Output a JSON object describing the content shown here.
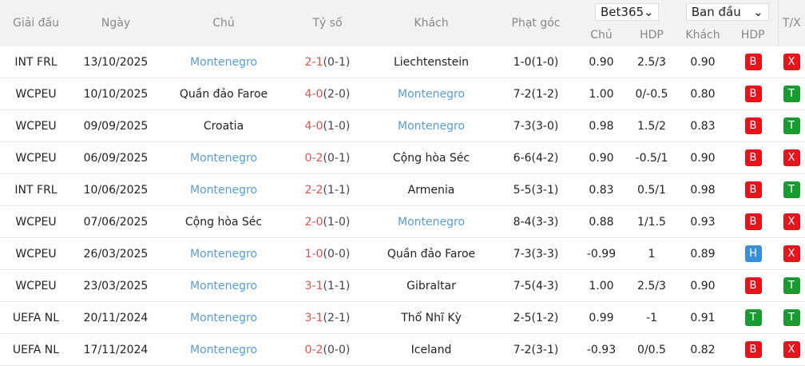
{
  "header": {
    "league": "Giải đấu",
    "date": "Ngày",
    "home": "Chủ",
    "score": "Tỷ số",
    "away": "Khách",
    "corners": "Phạt góc",
    "bookmaker": "Bet365",
    "odds_type": "Ban đầu",
    "odds_home": "Chủ",
    "odds_hdp": "HDP",
    "odds_away": "Khách",
    "result_hdp": "HDP",
    "ou": "T/X"
  },
  "colors": {
    "B": "#e8141b",
    "T": "#1a9a2f",
    "H": "#3a8fd8",
    "X": "#e8141b",
    "highlight_team": "#5b9bd1",
    "score": "#d9534f"
  },
  "rows": [
    {
      "league": "INT FRL",
      "date": "13/10/2025",
      "home": "Montenegro",
      "home_hl": true,
      "score": "2-1",
      "half": "(0-1)",
      "away": "Liechtenstein",
      "away_hl": false,
      "corners": "1-0(1-0)",
      "oh": "0.90",
      "hdp": "2.5/3",
      "oa": "0.90",
      "res": "B",
      "ou": "X"
    },
    {
      "league": "WCPEU",
      "date": "10/10/2025",
      "home": "Quần đảo Faroe",
      "home_hl": false,
      "score": "4-0",
      "half": "(2-0)",
      "away": "Montenegro",
      "away_hl": true,
      "corners": "7-2(1-2)",
      "oh": "1.00",
      "hdp": "0/-0.5",
      "oa": "0.80",
      "res": "B",
      "ou": "T"
    },
    {
      "league": "WCPEU",
      "date": "09/09/2025",
      "home": "Croatia",
      "home_hl": false,
      "score": "4-0",
      "half": "(1-0)",
      "away": "Montenegro",
      "away_hl": true,
      "corners": "7-3(3-0)",
      "oh": "0.98",
      "hdp": "1.5/2",
      "oa": "0.83",
      "res": "B",
      "ou": "T"
    },
    {
      "league": "WCPEU",
      "date": "06/09/2025",
      "home": "Montenegro",
      "home_hl": true,
      "score": "0-2",
      "half": "(0-1)",
      "away": "Cộng hòa Séc",
      "away_hl": false,
      "corners": "6-6(4-2)",
      "oh": "0.90",
      "hdp": "-0.5/1",
      "oa": "0.90",
      "res": "B",
      "ou": "X"
    },
    {
      "league": "INT FRL",
      "date": "10/06/2025",
      "home": "Montenegro",
      "home_hl": true,
      "score": "2-2",
      "half": "(1-1)",
      "away": "Armenia",
      "away_hl": false,
      "corners": "5-5(3-1)",
      "oh": "0.83",
      "hdp": "0.5/1",
      "oa": "0.98",
      "res": "B",
      "ou": "T"
    },
    {
      "league": "WCPEU",
      "date": "07/06/2025",
      "home": "Cộng hòa Séc",
      "home_hl": false,
      "score": "2-0",
      "half": "(1-0)",
      "away": "Montenegro",
      "away_hl": true,
      "corners": "8-4(3-3)",
      "oh": "0.88",
      "hdp": "1/1.5",
      "oa": "0.93",
      "res": "B",
      "ou": "X"
    },
    {
      "league": "WCPEU",
      "date": "26/03/2025",
      "home": "Montenegro",
      "home_hl": true,
      "score": "1-0",
      "half": "(0-0)",
      "away": "Quần đảo Faroe",
      "away_hl": false,
      "corners": "7-3(3-3)",
      "oh": "-0.99",
      "hdp": "1",
      "oa": "0.89",
      "res": "H",
      "ou": "X"
    },
    {
      "league": "WCPEU",
      "date": "23/03/2025",
      "home": "Montenegro",
      "home_hl": true,
      "score": "3-1",
      "half": "(1-1)",
      "away": "Gibraltar",
      "away_hl": false,
      "corners": "7-5(4-3)",
      "oh": "1.00",
      "hdp": "2.5/3",
      "oa": "0.90",
      "res": "B",
      "ou": "T"
    },
    {
      "league": "UEFA NL",
      "date": "20/11/2024",
      "home": "Montenegro",
      "home_hl": true,
      "score": "3-1",
      "half": "(2-1)",
      "away": "Thổ Nhĩ Kỳ",
      "away_hl": false,
      "corners": "2-5(1-2)",
      "oh": "0.99",
      "hdp": "-1",
      "oa": "0.91",
      "res": "T",
      "ou": "T"
    },
    {
      "league": "UEFA NL",
      "date": "17/11/2024",
      "home": "Montenegro",
      "home_hl": true,
      "score": "0-2",
      "half": "(0-0)",
      "away": "Iceland",
      "away_hl": false,
      "corners": "7-2(3-1)",
      "oh": "-0.93",
      "hdp": "0/0.5",
      "oa": "0.82",
      "res": "B",
      "ou": "X"
    }
  ]
}
